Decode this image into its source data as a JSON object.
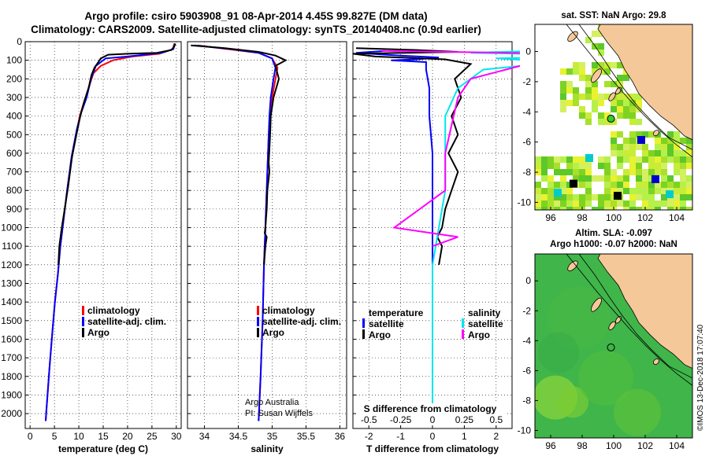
{
  "header": {
    "title_line1": "Argo profile: csiro 5903908_91 08-Apr-2014 4.45S 99.827E (DM data)",
    "title_line2": "Climatology: CARS2009. Satellite-adjusted climatology: synTS_20140408.nc (0.9d earlier)"
  },
  "colors": {
    "argo": "#000000",
    "climatology": "#ff0000",
    "satellite": "#0000ff",
    "satellite_salinity": "#00e5ee",
    "climatology_salinity": "#ff00ff",
    "land": "#f5c89a",
    "ocean_sla": "#3fb54a"
  },
  "chart_data": [
    {
      "type": "line",
      "name": "temperature",
      "xlabel": "temperature (deg C)",
      "ylabel": "",
      "xlim": [
        -1,
        31
      ],
      "ylim": [
        2080,
        0
      ],
      "xticks": [
        "0",
        "5",
        "10",
        "15",
        "20",
        "25",
        "30"
      ],
      "xtick_values": [
        0,
        5,
        10,
        15,
        20,
        25,
        30
      ],
      "yticks": [
        "0",
        "100",
        "200",
        "300",
        "400",
        "500",
        "600",
        "700",
        "800",
        "900",
        "1000",
        "1100",
        "1200",
        "1300",
        "1400",
        "1500",
        "1600",
        "1700",
        "1800",
        "1900",
        "2000"
      ],
      "ytick_values": [
        0,
        100,
        200,
        300,
        400,
        500,
        600,
        700,
        800,
        900,
        1000,
        1100,
        1200,
        1300,
        1400,
        1500,
        1600,
        1700,
        1800,
        1900,
        2000
      ],
      "legend": [
        "climatology",
        "satellite-adj. clim.",
        "Argo"
      ],
      "series": [
        {
          "name": "climatology",
          "color": "#ff0000",
          "points": [
            [
              29.6,
              10
            ],
            [
              29.3,
              40
            ],
            [
              26.5,
              65
            ],
            [
              21,
              80
            ],
            [
              17,
              100
            ],
            [
              14.5,
              130
            ],
            [
              13,
              170
            ],
            [
              12,
              250
            ],
            [
              11,
              330
            ],
            [
              10.2,
              400
            ],
            [
              9.4,
              500
            ],
            [
              8.4,
              650
            ],
            [
              7.6,
              800
            ],
            [
              6.9,
              950
            ],
            [
              6.2,
              1100
            ],
            [
              5.7,
              1250
            ],
            [
              5.1,
              1400
            ],
            [
              4.6,
              1550
            ],
            [
              4,
              1750
            ],
            [
              3.3,
              2000
            ],
            [
              3.2,
              2040
            ]
          ]
        },
        {
          "name": "satellite-adj. clim.",
          "color": "#0000ff",
          "points": [
            [
              29.7,
              10
            ],
            [
              29.4,
              40
            ],
            [
              27,
              60
            ],
            [
              20,
              80
            ],
            [
              15.5,
              90
            ],
            [
              13.5,
              130
            ],
            [
              12.5,
              200
            ],
            [
              11.6,
              300
            ],
            [
              10.5,
              380
            ],
            [
              9.6,
              470
            ],
            [
              8.5,
              620
            ],
            [
              7.6,
              800
            ],
            [
              6.9,
              950
            ],
            [
              6.2,
              1100
            ],
            [
              5.7,
              1250
            ],
            [
              5.1,
              1400
            ],
            [
              4.6,
              1550
            ],
            [
              4,
              1750
            ],
            [
              3.3,
              2000
            ],
            [
              3.2,
              2040
            ]
          ]
        },
        {
          "name": "Argo",
          "color": "#000000",
          "points": [
            [
              29.8,
              10
            ],
            [
              29.6,
              25
            ],
            [
              29,
              45
            ],
            [
              26,
              60
            ],
            [
              20,
              65
            ],
            [
              16,
              70
            ],
            [
              14.5,
              90
            ],
            [
              14,
              110
            ],
            [
              13.2,
              140
            ],
            [
              12.6,
              180
            ],
            [
              12,
              250
            ],
            [
              11,
              330
            ],
            [
              10.3,
              400
            ],
            [
              9.5,
              500
            ],
            [
              8.6,
              620
            ],
            [
              7.8,
              780
            ],
            [
              7.1,
              900
            ],
            [
              6.5,
              1000
            ],
            [
              6,
              1100
            ],
            [
              5.8,
              1200
            ]
          ]
        }
      ]
    },
    {
      "type": "line",
      "name": "salinity",
      "xlabel": "salinity",
      "xlim": [
        33.75,
        36.1
      ],
      "ylim": [
        2080,
        0
      ],
      "xticks": [
        "34",
        "34.5",
        "35",
        "35.5",
        "36"
      ],
      "xtick_values": [
        34,
        34.5,
        35,
        35.5,
        36
      ],
      "legend": [
        "climatology",
        "satellite-adj. clim.",
        "Argo"
      ],
      "annotations": [
        "Argo Australia",
        "PI: Susan Wijffels"
      ],
      "series": [
        {
          "name": "climatology",
          "color": "#ff0000",
          "points": [
            [
              33.9,
              20
            ],
            [
              34.35,
              40
            ],
            [
              34.8,
              60
            ],
            [
              35.0,
              90
            ],
            [
              35.08,
              140
            ],
            [
              35.05,
              200
            ],
            [
              35.0,
              300
            ],
            [
              34.97,
              400
            ],
            [
              34.95,
              500
            ],
            [
              34.93,
              700
            ],
            [
              34.91,
              900
            ],
            [
              34.9,
              1000
            ],
            [
              34.88,
              1200
            ],
            [
              34.86,
              1500
            ],
            [
              34.83,
              1800
            ],
            [
              34.8,
              2040
            ]
          ]
        },
        {
          "name": "satellite-adj. clim.",
          "color": "#0000ff",
          "points": [
            [
              33.85,
              20
            ],
            [
              34.4,
              40
            ],
            [
              34.8,
              60
            ],
            [
              35.0,
              90
            ],
            [
              35.05,
              140
            ],
            [
              35.02,
              200
            ],
            [
              34.98,
              300
            ],
            [
              34.96,
              400
            ],
            [
              34.95,
              500
            ],
            [
              34.93,
              700
            ],
            [
              34.91,
              900
            ],
            [
              34.9,
              1000
            ],
            [
              34.88,
              1200
            ],
            [
              34.86,
              1500
            ],
            [
              34.83,
              1800
            ],
            [
              34.8,
              2040
            ]
          ]
        },
        {
          "name": "Argo",
          "color": "#000000",
          "points": [
            [
              33.8,
              20
            ],
            [
              34.3,
              35
            ],
            [
              34.8,
              55
            ],
            [
              35.05,
              75
            ],
            [
              35.2,
              100
            ],
            [
              35.05,
              130
            ],
            [
              35.1,
              200
            ],
            [
              35.02,
              300
            ],
            [
              34.98,
              400
            ],
            [
              34.97,
              500
            ],
            [
              34.95,
              650
            ],
            [
              34.96,
              700
            ],
            [
              34.93,
              800
            ],
            [
              34.92,
              900
            ],
            [
              34.91,
              950
            ],
            [
              34.9,
              1000
            ],
            [
              34.89,
              1030
            ],
            [
              34.92,
              1050
            ],
            [
              34.9,
              1100
            ],
            [
              34.88,
              1200
            ]
          ]
        }
      ]
    },
    {
      "type": "line",
      "name": "differences",
      "xlabel": "T difference from climatology",
      "xlim": [
        -2.5,
        2.5
      ],
      "ylim": [
        2080,
        0
      ],
      "xticks": [
        "-2",
        "-1",
        "0",
        "1",
        "2"
      ],
      "xtick_values": [
        -2,
        -1,
        0,
        1,
        2
      ],
      "x2label": "S difference from climatology",
      "x2ticks": [
        "-0.5",
        "-0.25",
        "0",
        "0.25",
        "0.5"
      ],
      "x2tick_values": [
        -0.5,
        -0.25,
        0,
        0.25,
        0.5
      ],
      "legend_left_title": "temperature",
      "legend_left": [
        "satellite",
        "Argo"
      ],
      "legend_right_title": "salinity",
      "legend_right": [
        "satellite",
        "Argo"
      ],
      "series": [
        {
          "name": "temperature satellite",
          "color": "#0000ff",
          "points": [
            [
              -1.5,
              50
            ],
            [
              -2.4,
              60
            ],
            [
              -1,
              75
            ],
            [
              0.2,
              85
            ],
            [
              -0.5,
              95
            ],
            [
              -1.3,
              100
            ],
            [
              -0.2,
              110
            ],
            [
              -0.2,
              150
            ],
            [
              -0.1,
              250
            ],
            [
              -0.1,
              400
            ],
            [
              0,
              600
            ],
            [
              0,
              800
            ],
            [
              0,
              1000
            ],
            [
              0,
              1200
            ],
            [
              0,
              1500
            ],
            [
              0,
              1800
            ],
            [
              0,
              2040
            ]
          ]
        },
        {
          "name": "temperature Argo",
          "color": "#000000",
          "points": [
            [
              -2.4,
              35
            ],
            [
              -0.5,
              45
            ],
            [
              0.8,
              55
            ],
            [
              -2.5,
              65
            ],
            [
              -1.8,
              80
            ],
            [
              0.4,
              95
            ],
            [
              1.2,
              120
            ],
            [
              0.7,
              200
            ],
            [
              0.9,
              300
            ],
            [
              0.6,
              400
            ],
            [
              0.8,
              500
            ],
            [
              0.5,
              600
            ],
            [
              0.8,
              700
            ],
            [
              0.6,
              800
            ],
            [
              0.4,
              900
            ],
            [
              0.3,
              1000
            ],
            [
              0.15,
              1050
            ],
            [
              0.3,
              1100
            ],
            [
              0.2,
              1200
            ]
          ]
        },
        {
          "name": "salinity satellite",
          "color": "#00e5ee",
          "points": [
            [
              0.8,
              50
            ],
            [
              0.3,
              60
            ],
            [
              1.5,
              75
            ],
            [
              0.5,
              90
            ],
            [
              1,
              110
            ],
            [
              0.4,
              150
            ],
            [
              0.2,
              250
            ],
            [
              0.1,
              400
            ],
            [
              0.1,
              600
            ],
            [
              0.1,
              800
            ],
            [
              0.05,
              1000
            ],
            [
              0,
              1200
            ],
            [
              0,
              1500
            ],
            [
              0,
              1800
            ],
            [
              0,
              2040
            ]
          ]
        },
        {
          "name": "salinity Argo",
          "color": "#ff00ff",
          "points": [
            [
              -0.4,
              50
            ],
            [
              0.6,
              60
            ],
            [
              1.2,
              70
            ],
            [
              0.7,
              85
            ],
            [
              0.8,
              110
            ],
            [
              0.3,
              200
            ],
            [
              0.2,
              300
            ],
            [
              0.15,
              450
            ],
            [
              0.1,
              600
            ],
            [
              0.1,
              800
            ],
            [
              -0.1,
              900
            ],
            [
              -0.3,
              1000
            ],
            [
              0.2,
              1050
            ],
            [
              0,
              1100
            ]
          ]
        }
      ]
    },
    {
      "type": "heatmap",
      "name": "sst-map",
      "title": "sat. SST: NaN Argo: 29.8",
      "xticks": [
        "96",
        "98",
        "100",
        "102",
        "104"
      ],
      "xtick_values": [
        96,
        98,
        100,
        102,
        104
      ],
      "yticks": [
        "0",
        "-2",
        "-4",
        "-6",
        "-8",
        "-10"
      ],
      "ytick_values": [
        0,
        -2,
        -4,
        -6,
        -8,
        -10
      ],
      "xlim": [
        95,
        105
      ],
      "ylim": [
        -10.5,
        1.8
      ],
      "argo_position": [
        99.827,
        -4.45
      ]
    },
    {
      "type": "heatmap",
      "name": "sla-map",
      "title_line1": "Altim. SLA: -0.097",
      "title_line2": "Argo h1000: -0.07 h2000: NaN",
      "xticks": [
        "96",
        "98",
        "100",
        "102",
        "104"
      ],
      "xtick_values": [
        96,
        98,
        100,
        102,
        104
      ],
      "yticks": [
        "0",
        "-2",
        "-4",
        "-6",
        "-8",
        "-10"
      ],
      "ytick_values": [
        0,
        -2,
        -4,
        -6,
        -8,
        -10
      ],
      "xlim": [
        95,
        105
      ],
      "ylim": [
        -10.5,
        1.8
      ],
      "argo_position": [
        99.827,
        -4.45
      ]
    }
  ],
  "footer": {
    "credit": "©IMOS 13-Dec-2018 17:07:40"
  }
}
